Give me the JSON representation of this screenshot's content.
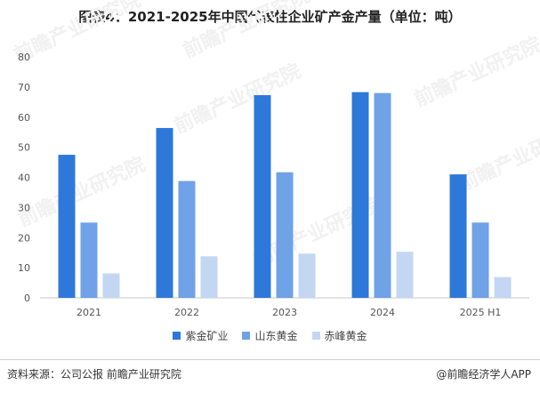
{
  "title": "图表4：2021-2025年中国代表性企业矿产金产量（单位：吨）",
  "source": "资料来源：公司公报   前瞻产业研究院",
  "credit": "@前瞻经济学人APP",
  "watermark_text": "前瞻产业研究院",
  "colors": {
    "series": [
      "#2e78d9",
      "#6fa2e6",
      "#c3d7f3"
    ],
    "axis": "#c9c9c9",
    "tick": "#555555"
  },
  "chart_data": {
    "type": "bar",
    "title": "图表4：2021-2025年中国代表性企业矿产金产量（单位：吨）",
    "categories": [
      "2021",
      "2022",
      "2023",
      "2024",
      "2025 H1"
    ],
    "series": [
      {
        "name": "紫金矿业",
        "values": [
          47.5,
          56.4,
          67.3,
          68.3,
          41.0
        ]
      },
      {
        "name": "山东黄金",
        "values": [
          25.0,
          38.8,
          41.7,
          68.0,
          25.0
        ]
      },
      {
        "name": "赤峰黄金",
        "values": [
          8.1,
          13.8,
          14.7,
          15.3,
          6.9
        ]
      }
    ],
    "ylim": [
      0,
      80
    ],
    "yticks": [
      0,
      10,
      20,
      30,
      40,
      50,
      60,
      70,
      80
    ],
    "grid": false,
    "legend": "bottom"
  }
}
